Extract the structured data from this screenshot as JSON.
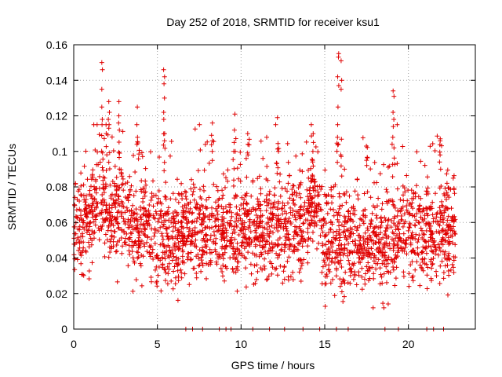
{
  "chart_data": {
    "type": "scatter",
    "title": "Day 252 of 2018, SRMTID for receiver ksu1",
    "xlabel": "GPS time / hours",
    "ylabel": "SRMTID / TECUs",
    "xlim": [
      0,
      24
    ],
    "ylim": [
      0,
      0.16
    ],
    "x_ticks": [
      0,
      5,
      10,
      15,
      20
    ],
    "x_tick_labels": [
      "0",
      "5",
      "10",
      "15",
      "20"
    ],
    "y_ticks": [
      0,
      0.02,
      0.04,
      0.06,
      0.08,
      0.1,
      0.12,
      0.14,
      0.16
    ],
    "y_tick_labels": [
      "0",
      "0.02",
      "0.04",
      "0.06",
      "0.08",
      "0.1",
      "0.12",
      "0.14",
      "0.16"
    ],
    "grid": true,
    "marker": "+",
    "color": "#e00000",
    "zero_value_times": [
      6.7,
      7.1,
      7.7,
      8.7,
      9.1,
      9.4,
      10.7,
      11.7,
      12.6,
      13.7,
      14.7,
      15.7,
      16.4,
      18.6,
      19.4,
      21.1,
      21.5,
      22.1
    ],
    "series": [
      {
        "name": "SRMTID",
        "note": "approximately 3000 points; dense band 0.02-0.10 TECU with spikes near 1.7h, 5.4h, 15.8h, 19.1h",
        "clusters": [
          {
            "t": [
              0.0,
              1.0
            ],
            "mean": 0.06,
            "sd": 0.016
          },
          {
            "t": [
              1.0,
              2.0
            ],
            "mean": 0.072,
            "sd": 0.017
          },
          {
            "t": [
              2.0,
              3.0
            ],
            "mean": 0.068,
            "sd": 0.016
          },
          {
            "t": [
              3.0,
              4.5
            ],
            "mean": 0.058,
            "sd": 0.015
          },
          {
            "t": [
              4.5,
              6.5
            ],
            "mean": 0.052,
            "sd": 0.016
          },
          {
            "t": [
              6.5,
              9.0
            ],
            "mean": 0.056,
            "sd": 0.016
          },
          {
            "t": [
              9.0,
              11.5
            ],
            "mean": 0.055,
            "sd": 0.016
          },
          {
            "t": [
              11.5,
              14.0
            ],
            "mean": 0.057,
            "sd": 0.016
          },
          {
            "t": [
              14.0,
              14.8
            ],
            "mean": 0.07,
            "sd": 0.015
          },
          {
            "t": [
              14.8,
              17.0
            ],
            "mean": 0.05,
            "sd": 0.017
          },
          {
            "t": [
              17.0,
              19.5
            ],
            "mean": 0.05,
            "sd": 0.016
          },
          {
            "t": [
              19.5,
              22.8
            ],
            "mean": 0.055,
            "sd": 0.016
          }
        ],
        "spikes": [
          {
            "t": 1.7,
            "values": [
              0.15,
              0.146,
              0.135,
              0.125,
              0.118
            ]
          },
          {
            "t": 2.1,
            "values": [
              0.128,
              0.122,
              0.118,
              0.113
            ]
          },
          {
            "t": 2.7,
            "values": [
              0.128,
              0.12,
              0.116,
              0.112
            ]
          },
          {
            "t": 3.8,
            "values": [
              0.125,
              0.115,
              0.108,
              0.104
            ]
          },
          {
            "t": 5.4,
            "values": [
              0.146,
              0.142,
              0.138,
              0.13,
              0.122,
              0.118,
              0.11,
              0.106
            ]
          },
          {
            "t": 8.3,
            "values": [
              0.116,
              0.106,
              0.1
            ]
          },
          {
            "t": 9.6,
            "values": [
              0.121,
              0.112,
              0.105
            ]
          },
          {
            "t": 10.4,
            "values": [
              0.11,
              0.104,
              0.098
            ]
          },
          {
            "t": 12.2,
            "values": [
              0.119,
              0.1
            ]
          },
          {
            "t": 14.3,
            "values": [
              0.11,
              0.105,
              0.1,
              0.095
            ]
          },
          {
            "t": 15.8,
            "values": [
              0.155,
              0.153,
              0.142,
              0.137,
              0.125,
              0.115,
              0.108,
              0.104
            ]
          },
          {
            "t": 16.0,
            "values": [
              0.151,
              0.14,
              0.135
            ]
          },
          {
            "t": 17.5,
            "values": [
              0.103,
              0.095
            ]
          },
          {
            "t": 19.1,
            "values": [
              0.134,
              0.131,
              0.122,
              0.118,
              0.114,
              0.108,
              0.102
            ]
          },
          {
            "t": 21.9,
            "values": [
              0.106,
              0.098,
              0.094,
              0.09
            ]
          }
        ]
      }
    ]
  }
}
